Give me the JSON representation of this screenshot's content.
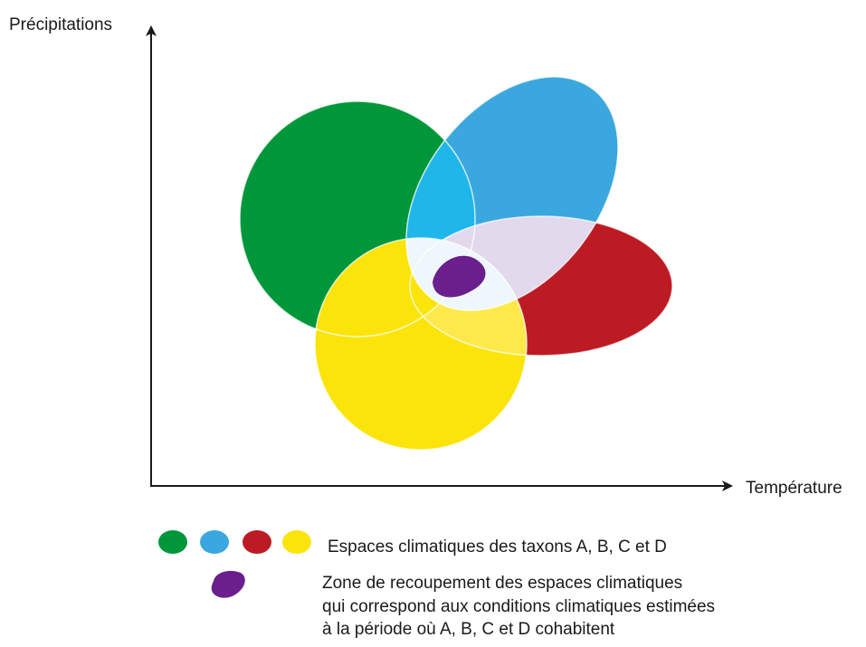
{
  "axes": {
    "y_label": "Précipitations",
    "x_label": "Température"
  },
  "taxa": [
    {
      "id": "A",
      "name": "A",
      "color": "#00963a"
    },
    {
      "id": "B",
      "name": "B",
      "color": "#3aa8de"
    },
    {
      "id": "C",
      "name": "C",
      "color": "#bd1b24"
    },
    {
      "id": "D",
      "name": "D",
      "color": "#fbe40a"
    }
  ],
  "overlap_zone": {
    "color": "#6a1f8c"
  },
  "legend": {
    "taxa_text": "Espaces climatiques des taxons A, B, C et D",
    "overlap_lines": [
      "Zone de recoupement des espaces climatiques",
      "qui correspond aux conditions climatiques estimées",
      "à la période où A, B, C et D cohabitent"
    ]
  }
}
